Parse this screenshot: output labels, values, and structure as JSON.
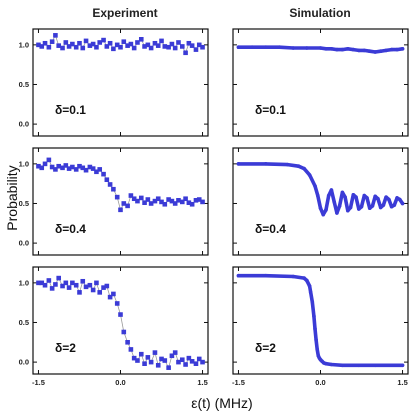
{
  "chart_data": {
    "type": "scatter",
    "column_titles": [
      "Experiment",
      "Simulation"
    ],
    "xlabel": "ε(t) (MHz)",
    "ylabel": "Probability",
    "xlim": [
      -1.6,
      1.6
    ],
    "ylim": [
      -0.15,
      1.2
    ],
    "xticks": [
      "-1.5",
      "0.0",
      "1.5"
    ],
    "yticks": [
      "0.0",
      "0.5",
      "1.0"
    ],
    "colors": {
      "marker": "#3b3bd6",
      "connector": "#9a9a9a",
      "frame": "#111111"
    },
    "panels": [
      {
        "column": "experiment",
        "delta_label": "δ=0.1",
        "x": [
          -1.5,
          -1.44,
          -1.38,
          -1.31,
          -1.25,
          -1.19,
          -1.13,
          -1.06,
          -1.0,
          -0.94,
          -0.88,
          -0.81,
          -0.75,
          -0.69,
          -0.63,
          -0.56,
          -0.5,
          -0.44,
          -0.38,
          -0.31,
          -0.25,
          -0.19,
          -0.13,
          -0.06,
          0.0,
          0.06,
          0.13,
          0.19,
          0.25,
          0.31,
          0.38,
          0.44,
          0.5,
          0.56,
          0.63,
          0.69,
          0.75,
          0.81,
          0.88,
          0.94,
          1.0,
          1.06,
          1.13,
          1.19,
          1.25,
          1.31,
          1.38,
          1.44,
          1.5
        ],
        "y": [
          1.0,
          0.98,
          1.02,
          0.97,
          1.04,
          1.12,
          0.99,
          0.96,
          1.03,
          0.98,
          1.01,
          0.97,
          1.02,
          0.96,
          1.05,
          0.99,
          1.01,
          0.97,
          1.03,
          1.06,
          0.98,
          1.02,
          0.95,
          1.0,
          0.97,
          1.04,
          0.99,
          1.01,
          0.96,
          1.03,
          1.07,
          0.98,
          1.0,
          0.96,
          1.02,
          0.99,
          1.05,
          0.98,
          0.97,
          1.01,
          0.96,
          1.03,
          0.98,
          0.9,
          1.02,
          0.99,
          0.94,
          1.0,
          0.97
        ]
      },
      {
        "column": "simulation",
        "delta_label": "δ=0.1",
        "x": [
          -1.5,
          -1.25,
          -1.0,
          -0.75,
          -0.5,
          -0.25,
          0.0,
          0.1,
          0.2,
          0.3,
          0.4,
          0.5,
          0.6,
          0.7,
          0.8,
          0.9,
          1.0,
          1.1,
          1.2,
          1.3,
          1.4,
          1.5
        ],
        "y": [
          0.97,
          0.97,
          0.97,
          0.97,
          0.96,
          0.96,
          0.96,
          0.95,
          0.95,
          0.94,
          0.94,
          0.95,
          0.94,
          0.93,
          0.93,
          0.92,
          0.91,
          0.92,
          0.93,
          0.94,
          0.94,
          0.95
        ]
      },
      {
        "column": "experiment",
        "delta_label": "δ=0.4",
        "x": [
          -1.5,
          -1.44,
          -1.38,
          -1.31,
          -1.25,
          -1.19,
          -1.13,
          -1.06,
          -1.0,
          -0.94,
          -0.88,
          -0.81,
          -0.75,
          -0.69,
          -0.63,
          -0.56,
          -0.5,
          -0.44,
          -0.38,
          -0.31,
          -0.25,
          -0.19,
          -0.13,
          -0.06,
          0.0,
          0.06,
          0.13,
          0.19,
          0.25,
          0.31,
          0.38,
          0.44,
          0.5,
          0.56,
          0.63,
          0.69,
          0.75,
          0.81,
          0.88,
          0.94,
          1.0,
          1.06,
          1.13,
          1.19,
          1.25,
          1.31,
          1.38,
          1.44,
          1.5
        ],
        "y": [
          0.97,
          0.95,
          1.0,
          1.05,
          0.96,
          0.93,
          0.97,
          0.95,
          0.98,
          0.94,
          0.96,
          0.93,
          0.97,
          0.95,
          0.92,
          0.96,
          0.94,
          0.9,
          0.93,
          0.87,
          0.8,
          0.74,
          0.68,
          0.58,
          0.42,
          0.5,
          0.47,
          0.6,
          0.56,
          0.53,
          0.57,
          0.51,
          0.55,
          0.5,
          0.53,
          0.56,
          0.52,
          0.49,
          0.55,
          0.53,
          0.5,
          0.54,
          0.52,
          0.56,
          0.51,
          0.49,
          0.54,
          0.55,
          0.52
        ]
      },
      {
        "column": "simulation",
        "delta_label": "δ=0.4",
        "x": [
          -1.5,
          -1.0,
          -0.6,
          -0.4,
          -0.3,
          -0.2,
          -0.1,
          -0.05,
          0.0,
          0.05,
          0.1,
          0.15,
          0.2,
          0.25,
          0.3,
          0.35,
          0.4,
          0.45,
          0.5,
          0.55,
          0.6,
          0.65,
          0.7,
          0.75,
          0.8,
          0.85,
          0.9,
          0.95,
          1.0,
          1.05,
          1.1,
          1.15,
          1.2,
          1.25,
          1.3,
          1.35,
          1.4,
          1.45,
          1.5
        ],
        "y": [
          1.0,
          1.0,
          0.99,
          0.97,
          0.94,
          0.86,
          0.72,
          0.6,
          0.44,
          0.36,
          0.42,
          0.6,
          0.67,
          0.52,
          0.38,
          0.47,
          0.64,
          0.58,
          0.41,
          0.45,
          0.61,
          0.58,
          0.43,
          0.46,
          0.6,
          0.57,
          0.44,
          0.47,
          0.59,
          0.56,
          0.45,
          0.48,
          0.58,
          0.55,
          0.46,
          0.48,
          0.57,
          0.55,
          0.5
        ]
      },
      {
        "column": "experiment",
        "delta_label": "δ=2",
        "x": [
          -1.5,
          -1.44,
          -1.38,
          -1.31,
          -1.25,
          -1.19,
          -1.13,
          -1.06,
          -1.0,
          -0.94,
          -0.88,
          -0.81,
          -0.75,
          -0.69,
          -0.63,
          -0.56,
          -0.5,
          -0.44,
          -0.38,
          -0.31,
          -0.25,
          -0.19,
          -0.13,
          -0.06,
          0.0,
          0.06,
          0.13,
          0.19,
          0.25,
          0.31,
          0.38,
          0.44,
          0.5,
          0.56,
          0.63,
          0.69,
          0.75,
          0.81,
          0.88,
          0.94,
          1.0,
          1.06,
          1.13,
          1.19,
          1.25,
          1.31,
          1.38,
          1.44,
          1.5
        ],
        "y": [
          1.0,
          1.0,
          0.97,
          1.03,
          0.93,
          0.98,
          1.06,
          0.96,
          1.0,
          0.94,
          1.0,
          0.97,
          0.88,
          1.02,
          0.95,
          0.97,
          0.91,
          1.0,
          0.88,
          0.94,
          0.96,
          0.82,
          0.86,
          0.74,
          0.6,
          0.38,
          0.25,
          0.16,
          0.05,
          0.02,
          0.1,
          -0.02,
          0.06,
          0.0,
          0.12,
          -0.04,
          0.04,
          0.02,
          -0.07,
          0.08,
          0.12,
          0.0,
          0.03,
          -0.03,
          0.05,
          0.01,
          -0.02,
          0.04,
          0.0
        ]
      },
      {
        "column": "simulation",
        "delta_label": "δ=2",
        "x": [
          -1.5,
          -1.0,
          -0.5,
          -0.3,
          -0.25,
          -0.2,
          -0.18,
          -0.15,
          -0.12,
          -0.1,
          -0.08,
          -0.06,
          -0.04,
          -0.02,
          0.0,
          0.03,
          0.06,
          0.1,
          0.2,
          0.4,
          0.7,
          1.0,
          1.5
        ],
        "y": [
          1.09,
          1.09,
          1.08,
          1.06,
          1.03,
          0.96,
          0.88,
          0.76,
          0.58,
          0.42,
          0.28,
          0.16,
          0.08,
          0.05,
          0.03,
          0.01,
          -0.01,
          -0.02,
          -0.03,
          -0.04,
          -0.04,
          -0.04,
          -0.04
        ]
      }
    ]
  }
}
